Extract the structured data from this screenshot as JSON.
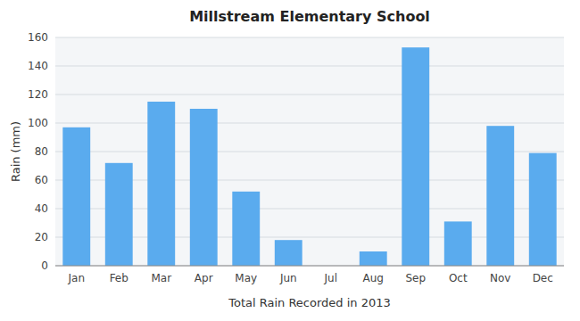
{
  "chart_data": {
    "type": "bar",
    "title": "Millstream Elementary School",
    "xlabel": "Total Rain Recorded in 2013",
    "ylabel": "Rain (mm)",
    "categories": [
      "Jan",
      "Feb",
      "Mar",
      "Apr",
      "May",
      "Jun",
      "Jul",
      "Aug",
      "Sep",
      "Oct",
      "Nov",
      "Dec"
    ],
    "values": [
      97,
      72,
      115,
      110,
      52,
      18,
      0,
      10,
      153,
      31,
      98,
      79
    ],
    "color": "#5aabee",
    "ylim": [
      0,
      160
    ],
    "yticks": [
      0,
      20,
      40,
      60,
      80,
      100,
      120,
      140,
      160
    ],
    "grid": true
  }
}
